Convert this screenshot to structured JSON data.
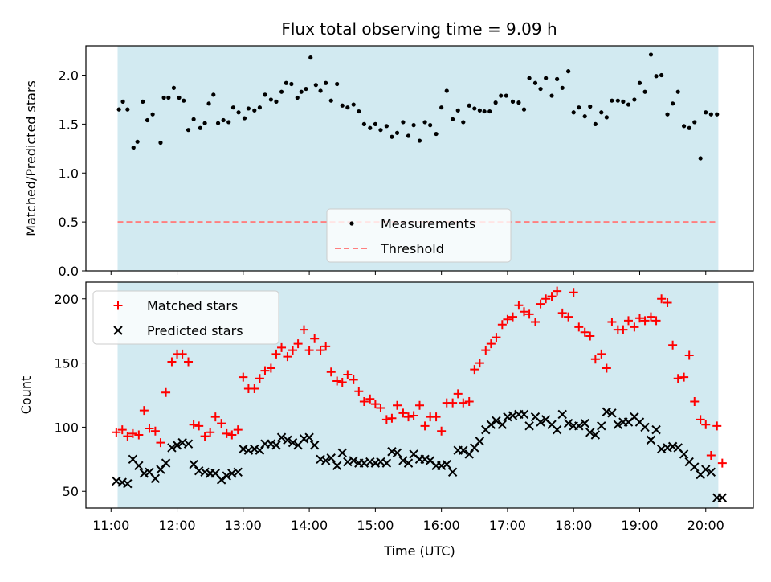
{
  "chart_data": [
    {
      "type": "scatter",
      "title": "Flux total observing time = 9.09 h",
      "xlabel": "",
      "ylabel": "Matched/Predicted stars",
      "xlim": [
        10.62,
        20.72
      ],
      "ylim": [
        0.0,
        2.3
      ],
      "yticks": [
        {
          "value": 0.0,
          "label": "0.0"
        },
        {
          "value": 0.5,
          "label": "0.5"
        },
        {
          "value": 1.0,
          "label": "1.0"
        },
        {
          "value": 1.5,
          "label": "1.5"
        },
        {
          "value": 2.0,
          "label": "2.0"
        }
      ],
      "observing_window": [
        11.1,
        20.19
      ],
      "window_color": "#add8e6",
      "legend_position": "lower-center",
      "threshold": {
        "name": "Threshold",
        "y": 0.5,
        "x": [
          11.1,
          20.19
        ],
        "color": "#ff7f7f",
        "style": "dashed"
      },
      "series": [
        {
          "name": "Measurements",
          "marker": "dot",
          "color": "#000000",
          "x": [
            11.12,
            11.18,
            11.25,
            11.34,
            11.4,
            11.48,
            11.55,
            11.63,
            11.75,
            11.8,
            11.87,
            11.95,
            12.03,
            12.1,
            12.17,
            12.25,
            12.35,
            12.42,
            12.48,
            12.55,
            12.62,
            12.7,
            12.78,
            12.85,
            12.93,
            13.02,
            13.08,
            13.17,
            13.25,
            13.33,
            13.42,
            13.5,
            13.58,
            13.65,
            13.73,
            13.82,
            13.88,
            13.95,
            14.02,
            14.1,
            14.17,
            14.25,
            14.33,
            14.42,
            14.5,
            14.58,
            14.67,
            14.75,
            14.83,
            14.92,
            15.0,
            15.08,
            15.17,
            15.25,
            15.33,
            15.42,
            15.5,
            15.58,
            15.67,
            15.75,
            15.83,
            15.92,
            16.0,
            16.08,
            16.17,
            16.25,
            16.33,
            16.42,
            16.5,
            16.58,
            16.65,
            16.73,
            16.82,
            16.9,
            16.98,
            17.08,
            17.17,
            17.25,
            17.33,
            17.42,
            17.5,
            17.58,
            17.67,
            17.75,
            17.83,
            17.92,
            18.0,
            18.08,
            18.17,
            18.25,
            18.33,
            18.42,
            18.5,
            18.58,
            18.67,
            18.75,
            18.83,
            18.92,
            19.0,
            19.08,
            19.17,
            19.25,
            19.33,
            19.42,
            19.5,
            19.58,
            19.67,
            19.75,
            19.83,
            19.92,
            20.0,
            20.08,
            20.17
          ],
          "y": [
            1.65,
            1.73,
            1.65,
            1.26,
            1.32,
            1.73,
            1.54,
            1.6,
            1.31,
            1.77,
            1.77,
            1.87,
            1.77,
            1.74,
            1.44,
            1.55,
            1.46,
            1.51,
            1.71,
            1.8,
            1.51,
            1.54,
            1.52,
            1.67,
            1.62,
            1.56,
            1.66,
            1.64,
            1.67,
            1.8,
            1.75,
            1.73,
            1.83,
            1.92,
            1.91,
            1.77,
            1.83,
            1.86,
            2.18,
            1.9,
            1.84,
            1.92,
            1.74,
            1.91,
            1.69,
            1.67,
            1.7,
            1.63,
            1.5,
            1.46,
            1.5,
            1.44,
            1.48,
            1.37,
            1.41,
            1.52,
            1.38,
            1.49,
            1.33,
            1.52,
            1.49,
            1.4,
            1.67,
            1.84,
            1.55,
            1.64,
            1.52,
            1.69,
            1.66,
            1.64,
            1.63,
            1.63,
            1.72,
            1.79,
            1.79,
            1.73,
            1.72,
            1.65,
            1.97,
            1.92,
            1.86,
            1.97,
            1.79,
            1.96,
            1.87,
            2.04,
            1.62,
            1.67,
            1.58,
            1.68,
            1.5,
            1.62,
            1.57,
            1.74,
            1.74,
            1.73,
            1.7,
            1.75,
            1.92,
            1.83,
            2.21,
            1.99,
            2.0,
            1.6,
            1.71,
            1.83,
            1.48,
            1.46,
            1.52,
            1.15,
            1.62,
            1.6,
            1.6
          ]
        }
      ]
    },
    {
      "type": "scatter",
      "title": "",
      "xlabel": "Time (UTC)",
      "ylabel": "Count",
      "xlim": [
        10.62,
        20.72
      ],
      "ylim": [
        37,
        213
      ],
      "xticks": [
        {
          "value": 11,
          "label": "11:00"
        },
        {
          "value": 12,
          "label": "12:00"
        },
        {
          "value": 13,
          "label": "13:00"
        },
        {
          "value": 14,
          "label": "14:00"
        },
        {
          "value": 15,
          "label": "15:00"
        },
        {
          "value": 16,
          "label": "16:00"
        },
        {
          "value": 17,
          "label": "17:00"
        },
        {
          "value": 18,
          "label": "18:00"
        },
        {
          "value": 19,
          "label": "19:00"
        },
        {
          "value": 20,
          "label": "20:00"
        }
      ],
      "yticks": [
        {
          "value": 50,
          "label": "50"
        },
        {
          "value": 100,
          "label": "100"
        },
        {
          "value": 150,
          "label": "150"
        },
        {
          "value": 200,
          "label": "200"
        }
      ],
      "observing_window": [
        11.1,
        20.19
      ],
      "window_color": "#add8e6",
      "legend_position": "top-left",
      "series": [
        {
          "name": "Matched stars",
          "marker": "plus",
          "color": "#ff0000",
          "x": [
            11.08,
            11.17,
            11.25,
            11.33,
            11.42,
            11.5,
            11.58,
            11.67,
            11.75,
            11.83,
            11.92,
            12.0,
            12.08,
            12.17,
            12.25,
            12.33,
            12.42,
            12.5,
            12.58,
            12.67,
            12.75,
            12.83,
            12.92,
            13.0,
            13.08,
            13.17,
            13.25,
            13.33,
            13.42,
            13.5,
            13.58,
            13.67,
            13.75,
            13.83,
            13.92,
            14.0,
            14.08,
            14.17,
            14.25,
            14.33,
            14.42,
            14.5,
            14.58,
            14.67,
            14.75,
            14.83,
            14.92,
            15.0,
            15.08,
            15.17,
            15.25,
            15.33,
            15.42,
            15.5,
            15.58,
            15.67,
            15.75,
            15.83,
            15.92,
            16.0,
            16.08,
            16.17,
            16.25,
            16.33,
            16.42,
            16.5,
            16.58,
            16.67,
            16.75,
            16.83,
            16.92,
            17.0,
            17.08,
            17.17,
            17.25,
            17.33,
            17.42,
            17.5,
            17.58,
            17.67,
            17.75,
            17.83,
            17.92,
            18.0,
            18.08,
            18.17,
            18.25,
            18.33,
            18.42,
            18.5,
            18.58,
            18.67,
            18.75,
            18.83,
            18.92,
            19.0,
            19.08,
            19.17,
            19.25,
            19.33,
            19.42,
            19.5,
            19.58,
            19.67,
            19.75,
            19.83,
            19.92,
            20.0,
            20.08,
            20.17,
            20.25
          ],
          "y": [
            96,
            98,
            93,
            95,
            94,
            113,
            99,
            97,
            88,
            127,
            151,
            157,
            157,
            151,
            102,
            101,
            93,
            96,
            108,
            103,
            95,
            94,
            98,
            139,
            130,
            130,
            138,
            144,
            146,
            157,
            162,
            155,
            160,
            165,
            176,
            160,
            169,
            160,
            163,
            143,
            136,
            135,
            141,
            137,
            128,
            120,
            122,
            118,
            115,
            106,
            107,
            117,
            111,
            108,
            109,
            117,
            101,
            108,
            108,
            97,
            119,
            119,
            126,
            119,
            120,
            145,
            150,
            160,
            165,
            170,
            180,
            184,
            186,
            195,
            190,
            188,
            182,
            196,
            200,
            202,
            206,
            189,
            186,
            205,
            178,
            174,
            171,
            153,
            157,
            146,
            182,
            176,
            176,
            183,
            178,
            185,
            183,
            186,
            183,
            200,
            197,
            164,
            138,
            139,
            156,
            120,
            106,
            102,
            78,
            101,
            72
          ]
        },
        {
          "name": "Predicted stars",
          "marker": "x",
          "color": "#000000",
          "x": [
            11.08,
            11.17,
            11.25,
            11.33,
            11.42,
            11.5,
            11.58,
            11.67,
            11.75,
            11.83,
            11.92,
            12.0,
            12.08,
            12.17,
            12.25,
            12.33,
            12.42,
            12.5,
            12.58,
            12.67,
            12.75,
            12.83,
            12.92,
            13.0,
            13.08,
            13.17,
            13.25,
            13.33,
            13.42,
            13.5,
            13.58,
            13.67,
            13.75,
            13.83,
            13.92,
            14.0,
            14.08,
            14.17,
            14.25,
            14.33,
            14.42,
            14.5,
            14.58,
            14.67,
            14.75,
            14.83,
            14.92,
            15.0,
            15.08,
            15.17,
            15.25,
            15.33,
            15.42,
            15.5,
            15.58,
            15.67,
            15.75,
            15.83,
            15.92,
            16.0,
            16.08,
            16.17,
            16.25,
            16.33,
            16.42,
            16.5,
            16.58,
            16.67,
            16.75,
            16.83,
            16.92,
            17.0,
            17.08,
            17.17,
            17.25,
            17.33,
            17.42,
            17.5,
            17.58,
            17.67,
            17.75,
            17.83,
            17.92,
            18.0,
            18.08,
            18.17,
            18.25,
            18.33,
            18.42,
            18.5,
            18.58,
            18.67,
            18.75,
            18.83,
            18.92,
            19.0,
            19.08,
            19.17,
            19.25,
            19.33,
            19.42,
            19.5,
            19.58,
            19.67,
            19.75,
            19.83,
            19.92,
            20.0,
            20.08,
            20.17,
            20.25
          ],
          "y": [
            58,
            57,
            56,
            75,
            70,
            64,
            65,
            60,
            67,
            72,
            84,
            86,
            88,
            87,
            71,
            66,
            65,
            64,
            64,
            59,
            62,
            64,
            65,
            83,
            82,
            83,
            82,
            87,
            87,
            86,
            92,
            90,
            88,
            86,
            91,
            92,
            86,
            75,
            74,
            76,
            70,
            80,
            73,
            74,
            72,
            72,
            73,
            72,
            73,
            72,
            81,
            80,
            74,
            72,
            79,
            75,
            75,
            74,
            70,
            70,
            71,
            65,
            82,
            82,
            79,
            84,
            89,
            98,
            102,
            105,
            102,
            108,
            109,
            110,
            110,
            101,
            108,
            104,
            106,
            102,
            98,
            110,
            103,
            101,
            101,
            103,
            96,
            94,
            101,
            112,
            111,
            102,
            104,
            104,
            108,
            104,
            100,
            90,
            98,
            83,
            84,
            85,
            84,
            79,
            73,
            69,
            63,
            67,
            65,
            45,
            45
          ]
        }
      ]
    }
  ]
}
